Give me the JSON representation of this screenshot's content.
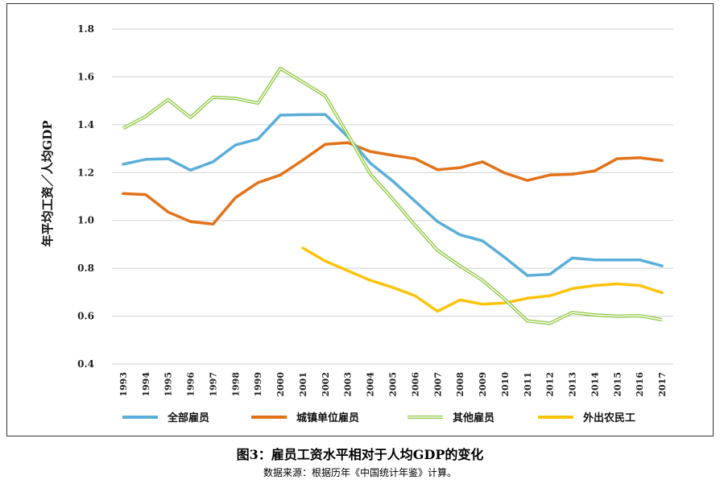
{
  "chart_data": {
    "type": "line",
    "title": "图3：雇员工资水平相对于人均GDP的变化",
    "source_note": "数据来源：根据历年《中国统计年鉴》计算。",
    "ylabel": "年平均工资／人均GDP",
    "xlabel": "",
    "ylim": [
      0.4,
      1.8
    ],
    "yticks": [
      0.4,
      0.6,
      0.8,
      1.0,
      1.2,
      1.4,
      1.6,
      1.8
    ],
    "ytick_labels": [
      "0.4",
      "0.6",
      "0.8",
      "1.0",
      "1.2",
      "1.4",
      "1.6",
      "1.8"
    ],
    "grid": true,
    "legend_position": "bottom",
    "categories": [
      "1993",
      "1994",
      "1995",
      "1996",
      "1997",
      "1998",
      "1999",
      "2000",
      "2001",
      "2002",
      "2003",
      "2004",
      "2005",
      "2006",
      "2007",
      "2008",
      "2009",
      "2010",
      "2011",
      "2012",
      "2013",
      "2014",
      "2015",
      "2016",
      "2017"
    ],
    "series": [
      {
        "name": "全部雇员",
        "color": "#5aaed8",
        "style": "solid",
        "values": [
          1.235,
          1.255,
          1.258,
          1.21,
          1.245,
          1.315,
          1.34,
          1.44,
          1.442,
          1.443,
          1.35,
          1.24,
          1.165,
          1.08,
          0.995,
          0.94,
          0.915,
          0.845,
          0.77,
          0.775,
          0.843,
          0.835,
          0.835,
          0.835,
          0.81
        ]
      },
      {
        "name": "城镇单位雇员",
        "color": "#e2721a",
        "style": "solid",
        "values": [
          1.112,
          1.108,
          1.035,
          0.995,
          0.985,
          1.095,
          1.158,
          1.19,
          1.252,
          1.318,
          1.325,
          1.288,
          1.272,
          1.258,
          1.212,
          1.22,
          1.245,
          1.198,
          1.167,
          1.19,
          1.193,
          1.207,
          1.258,
          1.262,
          1.25
        ]
      },
      {
        "name": "其他雇员",
        "color": "#8cc63e",
        "style": "double",
        "values": [
          1.385,
          1.435,
          1.505,
          1.43,
          1.515,
          1.51,
          1.49,
          1.635,
          1.578,
          1.52,
          1.36,
          1.195,
          1.09,
          0.98,
          0.875,
          0.81,
          0.75,
          0.67,
          0.58,
          0.57,
          0.615,
          0.605,
          0.6,
          0.602,
          0.585
        ]
      },
      {
        "name": "外出农民工",
        "color": "#fcc30c",
        "style": "solid",
        "values": [
          null,
          null,
          null,
          null,
          null,
          null,
          null,
          null,
          0.885,
          0.83,
          0.79,
          0.75,
          0.72,
          0.685,
          0.62,
          0.668,
          0.65,
          0.655,
          0.675,
          0.685,
          0.715,
          0.728,
          0.735,
          0.728,
          0.698
        ]
      }
    ]
  }
}
